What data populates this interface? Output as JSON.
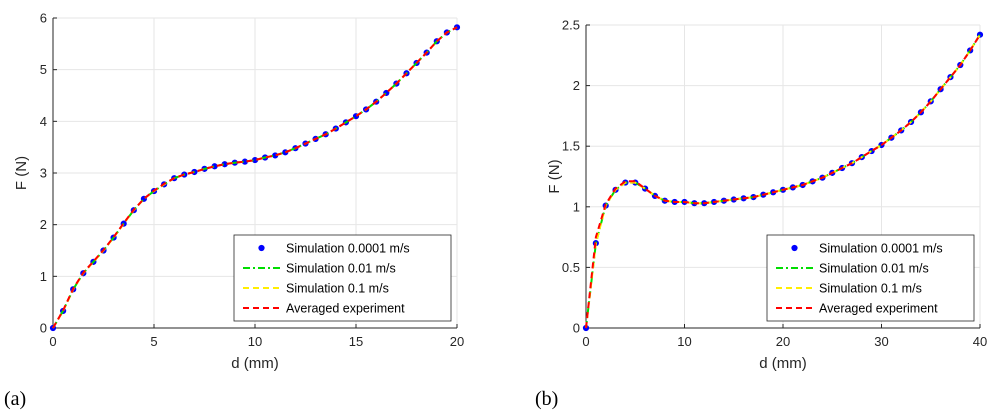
{
  "panel_labels": [
    "(a)",
    "(b)"
  ],
  "chart_data": [
    {
      "type": "line",
      "panel": "(a)",
      "xlabel": "d (mm)",
      "ylabel": "F (N)",
      "xlim": [
        0,
        20
      ],
      "ylim": [
        0,
        6
      ],
      "xticks": [
        0,
        5,
        10,
        15,
        20
      ],
      "yticks": [
        0,
        1,
        2,
        3,
        4,
        5,
        6
      ],
      "grid": true,
      "legend_position": "bottom-right",
      "series": [
        {
          "name": "Simulation 0.0001 m/s",
          "color": "#0000ff",
          "style": "markers",
          "x": [
            0,
            0.5,
            1,
            1.5,
            2,
            2.5,
            3,
            3.5,
            4,
            4.5,
            5,
            5.5,
            6,
            6.5,
            7,
            7.5,
            8,
            8.5,
            9,
            9.5,
            10,
            10.5,
            11,
            11.5,
            12,
            12.5,
            13,
            13.5,
            14,
            14.5,
            15,
            15.5,
            16,
            16.5,
            17,
            17.5,
            18,
            18.5,
            19,
            19.5,
            20
          ],
          "y": [
            0,
            0.33,
            0.75,
            1.06,
            1.28,
            1.5,
            1.75,
            2.02,
            2.28,
            2.5,
            2.65,
            2.78,
            2.9,
            2.97,
            3.02,
            3.08,
            3.13,
            3.17,
            3.2,
            3.22,
            3.25,
            3.3,
            3.34,
            3.4,
            3.48,
            3.57,
            3.66,
            3.75,
            3.86,
            3.98,
            4.1,
            4.23,
            4.38,
            4.55,
            4.73,
            4.93,
            5.13,
            5.33,
            5.55,
            5.72,
            5.82
          ]
        },
        {
          "name": "Simulation 0.01 m/s",
          "color": "#00dd00",
          "style": "dashdot",
          "x": [
            0,
            0.5,
            1,
            1.5,
            2,
            2.5,
            3,
            3.5,
            4,
            4.5,
            5,
            5.5,
            6,
            6.5,
            7,
            7.5,
            8,
            8.5,
            9,
            9.5,
            10,
            10.5,
            11,
            11.5,
            12,
            12.5,
            13,
            13.5,
            14,
            14.5,
            15,
            15.5,
            16,
            16.5,
            17,
            17.5,
            18,
            18.5,
            19,
            19.5,
            20
          ],
          "y": [
            0,
            0.33,
            0.75,
            1.06,
            1.28,
            1.5,
            1.75,
            2.02,
            2.28,
            2.5,
            2.65,
            2.78,
            2.9,
            2.97,
            3.02,
            3.08,
            3.13,
            3.17,
            3.2,
            3.22,
            3.25,
            3.3,
            3.34,
            3.4,
            3.48,
            3.57,
            3.66,
            3.75,
            3.86,
            3.98,
            4.1,
            4.23,
            4.38,
            4.55,
            4.73,
            4.93,
            5.13,
            5.33,
            5.55,
            5.72,
            5.82
          ]
        },
        {
          "name": "Simulation 0.1 m/s",
          "color": "#ffee00",
          "style": "dashed",
          "x": [
            0,
            0.5,
            1,
            1.5,
            2,
            2.5,
            3,
            3.5,
            4,
            4.5,
            5,
            5.5,
            6,
            6.5,
            7,
            7.5,
            8,
            8.5,
            9,
            9.5,
            10,
            10.5,
            11,
            11.5,
            12,
            12.5,
            13,
            13.5,
            14,
            14.5,
            15,
            15.5,
            16,
            16.5,
            17,
            17.5,
            18,
            18.5,
            19,
            19.5,
            20
          ],
          "y": [
            0,
            0.33,
            0.75,
            1.06,
            1.28,
            1.5,
            1.75,
            2.02,
            2.28,
            2.5,
            2.65,
            2.78,
            2.9,
            2.97,
            3.02,
            3.08,
            3.13,
            3.17,
            3.2,
            3.22,
            3.25,
            3.3,
            3.34,
            3.4,
            3.48,
            3.57,
            3.66,
            3.75,
            3.86,
            3.98,
            4.1,
            4.23,
            4.38,
            4.55,
            4.73,
            4.93,
            5.13,
            5.33,
            5.55,
            5.72,
            5.82
          ]
        },
        {
          "name": "Averaged experiment",
          "color": "#ff0000",
          "style": "dashed",
          "x": [
            0,
            0.5,
            1,
            1.5,
            2,
            2.5,
            3,
            3.5,
            4,
            4.5,
            5,
            5.5,
            6,
            6.5,
            7,
            7.5,
            8,
            8.5,
            9,
            9.5,
            10,
            10.5,
            11,
            11.5,
            12,
            12.5,
            13,
            13.5,
            14,
            14.5,
            15,
            15.5,
            16,
            16.5,
            17,
            17.5,
            18,
            18.5,
            19,
            19.5,
            20
          ],
          "y": [
            0,
            0.34,
            0.76,
            1.07,
            1.29,
            1.51,
            1.76,
            2.03,
            2.29,
            2.5,
            2.66,
            2.79,
            2.9,
            2.97,
            3.02,
            3.08,
            3.13,
            3.17,
            3.2,
            3.22,
            3.25,
            3.3,
            3.34,
            3.4,
            3.48,
            3.57,
            3.66,
            3.75,
            3.86,
            3.98,
            4.1,
            4.23,
            4.38,
            4.55,
            4.73,
            4.93,
            5.13,
            5.33,
            5.55,
            5.72,
            5.82
          ]
        }
      ]
    },
    {
      "type": "line",
      "panel": "(b)",
      "xlabel": "d (mm)",
      "ylabel": "F (N)",
      "xlim": [
        0,
        40
      ],
      "ylim": [
        0,
        2.5
      ],
      "xticks": [
        0,
        10,
        20,
        30,
        40
      ],
      "yticks": [
        0,
        0.5,
        1,
        1.5,
        2,
        2.5
      ],
      "grid": true,
      "legend_position": "bottom-right",
      "series": [
        {
          "name": "Simulation 0.0001 m/s",
          "color": "#0000ff",
          "style": "markers",
          "x": [
            0,
            1,
            2,
            3,
            4,
            5,
            6,
            7,
            8,
            9,
            10,
            11,
            12,
            13,
            14,
            15,
            16,
            17,
            18,
            19,
            20,
            21,
            22,
            23,
            24,
            25,
            26,
            27,
            28,
            29,
            30,
            31,
            32,
            33,
            34,
            35,
            36,
            37,
            38,
            39,
            40
          ],
          "y": [
            0,
            0.7,
            1.01,
            1.14,
            1.2,
            1.2,
            1.15,
            1.09,
            1.05,
            1.04,
            1.04,
            1.03,
            1.03,
            1.04,
            1.05,
            1.06,
            1.07,
            1.08,
            1.1,
            1.12,
            1.14,
            1.16,
            1.18,
            1.21,
            1.24,
            1.28,
            1.32,
            1.36,
            1.41,
            1.46,
            1.51,
            1.57,
            1.63,
            1.7,
            1.78,
            1.87,
            1.97,
            2.07,
            2.17,
            2.29,
            2.42
          ]
        },
        {
          "name": "Simulation 0.01 m/s",
          "color": "#00dd00",
          "style": "dashdot",
          "x": [
            0,
            1,
            2,
            3,
            4,
            5,
            6,
            7,
            8,
            9,
            10,
            11,
            12,
            13,
            14,
            15,
            16,
            17,
            18,
            19,
            20,
            21,
            22,
            23,
            24,
            25,
            26,
            27,
            28,
            29,
            30,
            31,
            32,
            33,
            34,
            35,
            36,
            37,
            38,
            39,
            40
          ],
          "y": [
            0,
            0.7,
            1.01,
            1.14,
            1.2,
            1.2,
            1.15,
            1.09,
            1.05,
            1.04,
            1.04,
            1.03,
            1.03,
            1.04,
            1.05,
            1.06,
            1.07,
            1.08,
            1.1,
            1.12,
            1.14,
            1.16,
            1.18,
            1.21,
            1.24,
            1.28,
            1.32,
            1.36,
            1.41,
            1.46,
            1.51,
            1.57,
            1.63,
            1.7,
            1.78,
            1.87,
            1.97,
            2.07,
            2.17,
            2.29,
            2.42
          ]
        },
        {
          "name": "Simulation 0.1 m/s",
          "color": "#ffee00",
          "style": "dashed",
          "x": [
            0,
            1,
            2,
            3,
            4,
            5,
            6,
            7,
            8,
            9,
            10,
            11,
            12,
            13,
            14,
            15,
            16,
            17,
            18,
            19,
            20,
            21,
            22,
            23,
            24,
            25,
            26,
            27,
            28,
            29,
            30,
            31,
            32,
            33,
            34,
            35,
            36,
            37,
            38,
            39,
            40
          ],
          "y": [
            0,
            0.7,
            1.01,
            1.14,
            1.2,
            1.2,
            1.15,
            1.09,
            1.05,
            1.04,
            1.04,
            1.03,
            1.03,
            1.04,
            1.05,
            1.06,
            1.07,
            1.08,
            1.1,
            1.12,
            1.14,
            1.16,
            1.18,
            1.21,
            1.24,
            1.28,
            1.32,
            1.36,
            1.41,
            1.46,
            1.51,
            1.57,
            1.63,
            1.7,
            1.78,
            1.87,
            1.97,
            2.07,
            2.17,
            2.29,
            2.42
          ]
        },
        {
          "name": "Averaged experiment",
          "color": "#ff0000",
          "style": "dashed",
          "x": [
            0,
            1,
            2,
            3,
            4,
            5,
            6,
            7,
            8,
            9,
            10,
            11,
            12,
            13,
            14,
            15,
            16,
            17,
            18,
            19,
            20,
            21,
            22,
            23,
            24,
            25,
            26,
            27,
            28,
            29,
            30,
            31,
            32,
            33,
            34,
            35,
            36,
            37,
            38,
            39,
            40
          ],
          "y": [
            0,
            0.75,
            1.02,
            1.15,
            1.21,
            1.21,
            1.15,
            1.09,
            1.05,
            1.04,
            1.04,
            1.03,
            1.03,
            1.04,
            1.05,
            1.06,
            1.07,
            1.08,
            1.1,
            1.12,
            1.14,
            1.16,
            1.18,
            1.21,
            1.24,
            1.28,
            1.32,
            1.36,
            1.41,
            1.46,
            1.51,
            1.57,
            1.63,
            1.7,
            1.78,
            1.87,
            1.97,
            2.07,
            2.17,
            2.29,
            2.42
          ]
        }
      ]
    }
  ]
}
